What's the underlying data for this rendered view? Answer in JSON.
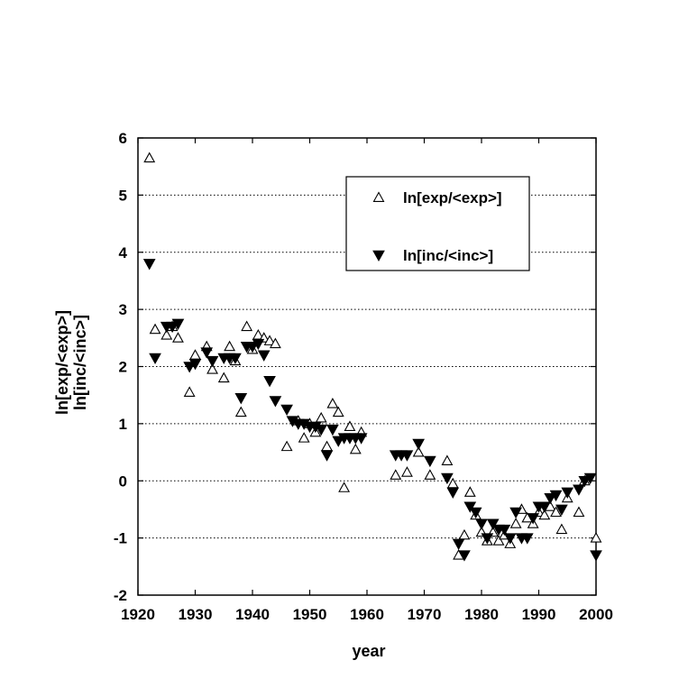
{
  "chart_data": {
    "type": "scatter",
    "xlabel": "year",
    "ylabel": "ln[exp/<exp>]",
    "ylabel2": "ln[inc/<inc>]",
    "xlim": [
      1920,
      2000
    ],
    "ylim": [
      -2,
      6
    ],
    "xticks": [
      1920,
      1930,
      1940,
      1950,
      1960,
      1970,
      1980,
      1990,
      2000
    ],
    "yticks": [
      -2,
      -1,
      0,
      1,
      2,
      3,
      4,
      5,
      6
    ],
    "grid": "horizontal-dotted",
    "legend_position": "top-right",
    "series": [
      {
        "name": "ln[exp/<exp>]",
        "marker": "open-triangle-up",
        "color": "#000000",
        "points": [
          [
            1922,
            5.65
          ],
          [
            1923,
            2.65
          ],
          [
            1925,
            2.55
          ],
          [
            1926,
            2.7
          ],
          [
            1927,
            2.5
          ],
          [
            1929,
            1.55
          ],
          [
            1930,
            2.2
          ],
          [
            1932,
            2.35
          ],
          [
            1933,
            1.95
          ],
          [
            1935,
            1.8
          ],
          [
            1936,
            2.35
          ],
          [
            1937,
            2.1
          ],
          [
            1938,
            1.2
          ],
          [
            1939,
            2.7
          ],
          [
            1940,
            2.3
          ],
          [
            1941,
            2.55
          ],
          [
            1942,
            2.5
          ],
          [
            1943,
            2.45
          ],
          [
            1944,
            2.4
          ],
          [
            1946,
            0.6
          ],
          [
            1948,
            1.05
          ],
          [
            1949,
            0.75
          ],
          [
            1950,
            1.0
          ],
          [
            1951,
            0.85
          ],
          [
            1952,
            1.1
          ],
          [
            1953,
            0.6
          ],
          [
            1954,
            1.35
          ],
          [
            1955,
            1.2
          ],
          [
            1956,
            -0.12
          ],
          [
            1957,
            0.95
          ],
          [
            1958,
            0.55
          ],
          [
            1959,
            0.85
          ],
          [
            1965,
            0.1
          ],
          [
            1967,
            0.15
          ],
          [
            1969,
            0.5
          ],
          [
            1971,
            0.1
          ],
          [
            1974,
            0.35
          ],
          [
            1975,
            -0.05
          ],
          [
            1976,
            -1.3
          ],
          [
            1977,
            -0.95
          ],
          [
            1978,
            -0.2
          ],
          [
            1979,
            -0.6
          ],
          [
            1980,
            -0.9
          ],
          [
            1981,
            -1.05
          ],
          [
            1982,
            -0.9
          ],
          [
            1983,
            -1.05
          ],
          [
            1984,
            -0.95
          ],
          [
            1985,
            -1.1
          ],
          [
            1986,
            -0.75
          ],
          [
            1987,
            -0.5
          ],
          [
            1988,
            -0.65
          ],
          [
            1989,
            -0.75
          ],
          [
            1990,
            -0.55
          ],
          [
            1991,
            -0.6
          ],
          [
            1992,
            -0.45
          ],
          [
            1993,
            -0.55
          ],
          [
            1994,
            -0.85
          ],
          [
            1995,
            -0.3
          ],
          [
            1997,
            -0.55
          ],
          [
            1998,
            0.0
          ],
          [
            2000,
            -1.0
          ]
        ]
      },
      {
        "name": "ln[inc/<inc>]",
        "marker": "filled-triangle-down",
        "color": "#000000",
        "points": [
          [
            1922,
            3.8
          ],
          [
            1923,
            2.15
          ],
          [
            1925,
            2.7
          ],
          [
            1926,
            2.7
          ],
          [
            1927,
            2.75
          ],
          [
            1929,
            2.0
          ],
          [
            1930,
            2.05
          ],
          [
            1932,
            2.25
          ],
          [
            1933,
            2.1
          ],
          [
            1935,
            2.15
          ],
          [
            1936,
            2.15
          ],
          [
            1937,
            2.15
          ],
          [
            1938,
            1.45
          ],
          [
            1939,
            2.35
          ],
          [
            1940,
            2.35
          ],
          [
            1941,
            2.4
          ],
          [
            1942,
            2.2
          ],
          [
            1943,
            1.75
          ],
          [
            1944,
            1.4
          ],
          [
            1946,
            1.25
          ],
          [
            1947,
            1.05
          ],
          [
            1948,
            1.0
          ],
          [
            1949,
            1.0
          ],
          [
            1950,
            0.95
          ],
          [
            1951,
            0.95
          ],
          [
            1952,
            0.9
          ],
          [
            1953,
            0.45
          ],
          [
            1954,
            0.9
          ],
          [
            1955,
            0.7
          ],
          [
            1956,
            0.75
          ],
          [
            1957,
            0.75
          ],
          [
            1958,
            0.75
          ],
          [
            1959,
            0.75
          ],
          [
            1965,
            0.45
          ],
          [
            1966,
            0.45
          ],
          [
            1967,
            0.45
          ],
          [
            1969,
            0.65
          ],
          [
            1971,
            0.35
          ],
          [
            1974,
            0.05
          ],
          [
            1975,
            -0.2
          ],
          [
            1976,
            -1.1
          ],
          [
            1977,
            -1.3
          ],
          [
            1978,
            -0.45
          ],
          [
            1979,
            -0.55
          ],
          [
            1980,
            -0.75
          ],
          [
            1981,
            -1.0
          ],
          [
            1982,
            -0.75
          ],
          [
            1983,
            -0.85
          ],
          [
            1984,
            -0.85
          ],
          [
            1985,
            -1.0
          ],
          [
            1986,
            -0.55
          ],
          [
            1987,
            -1.0
          ],
          [
            1988,
            -1.0
          ],
          [
            1989,
            -0.65
          ],
          [
            1990,
            -0.45
          ],
          [
            1991,
            -0.45
          ],
          [
            1992,
            -0.3
          ],
          [
            1993,
            -0.25
          ],
          [
            1994,
            -0.5
          ],
          [
            1995,
            -0.2
          ],
          [
            1997,
            -0.15
          ],
          [
            1998,
            0.0
          ],
          [
            1999,
            0.05
          ],
          [
            2000,
            -1.3
          ]
        ]
      }
    ]
  }
}
